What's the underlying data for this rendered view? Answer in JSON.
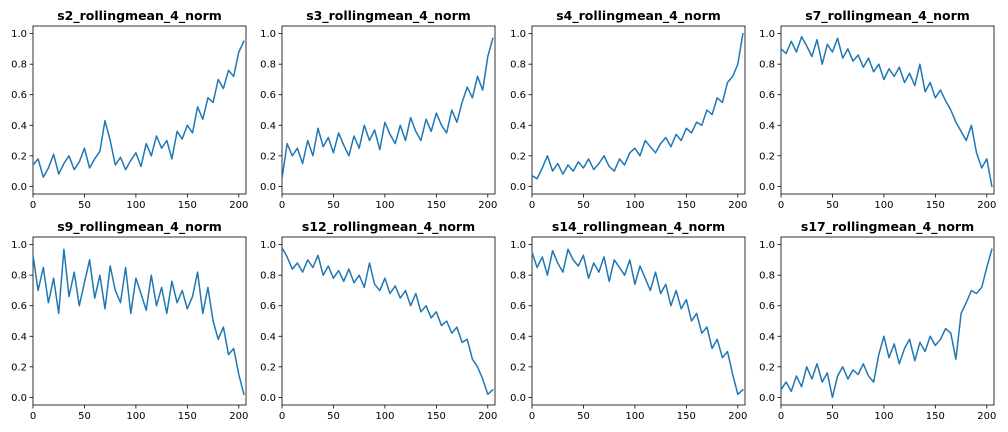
{
  "figure": {
    "background": "#ffffff",
    "line_color": "#1f77b4"
  },
  "chart_data": [
    {
      "type": "line",
      "title": "s2_rollingmean_4_norm",
      "xlim": [
        0,
        207
      ],
      "ylim": [
        -0.05,
        1.05
      ],
      "xticks": [
        0,
        50,
        100,
        150,
        200
      ],
      "yticks": [
        0.0,
        0.2,
        0.4,
        0.6,
        0.8,
        1.0
      ],
      "x": [
        0,
        5,
        10,
        15,
        20,
        25,
        30,
        35,
        40,
        45,
        50,
        55,
        60,
        65,
        70,
        75,
        80,
        85,
        90,
        95,
        100,
        105,
        110,
        115,
        120,
        125,
        130,
        135,
        140,
        145,
        150,
        155,
        160,
        165,
        170,
        175,
        180,
        185,
        190,
        195,
        200,
        205
      ],
      "values": [
        0.14,
        0.18,
        0.06,
        0.12,
        0.21,
        0.08,
        0.15,
        0.2,
        0.11,
        0.16,
        0.25,
        0.12,
        0.18,
        0.23,
        0.43,
        0.3,
        0.14,
        0.19,
        0.11,
        0.17,
        0.22,
        0.13,
        0.28,
        0.2,
        0.33,
        0.25,
        0.3,
        0.18,
        0.36,
        0.31,
        0.4,
        0.35,
        0.52,
        0.44,
        0.58,
        0.55,
        0.7,
        0.64,
        0.76,
        0.72,
        0.88,
        0.95
      ]
    },
    {
      "type": "line",
      "title": "s3_rollingmean_4_norm",
      "xlim": [
        0,
        207
      ],
      "ylim": [
        -0.05,
        1.05
      ],
      "xticks": [
        0,
        50,
        100,
        150,
        200
      ],
      "yticks": [
        0.0,
        0.2,
        0.4,
        0.6,
        0.8,
        1.0
      ],
      "x": [
        0,
        5,
        10,
        15,
        20,
        25,
        30,
        35,
        40,
        45,
        50,
        55,
        60,
        65,
        70,
        75,
        80,
        85,
        90,
        95,
        100,
        105,
        110,
        115,
        120,
        125,
        130,
        135,
        140,
        145,
        150,
        155,
        160,
        165,
        170,
        175,
        180,
        185,
        190,
        195,
        200,
        205
      ],
      "values": [
        0.05,
        0.28,
        0.2,
        0.25,
        0.15,
        0.3,
        0.2,
        0.38,
        0.26,
        0.32,
        0.22,
        0.35,
        0.27,
        0.2,
        0.33,
        0.25,
        0.4,
        0.3,
        0.37,
        0.24,
        0.42,
        0.34,
        0.28,
        0.4,
        0.3,
        0.45,
        0.36,
        0.3,
        0.44,
        0.36,
        0.48,
        0.4,
        0.35,
        0.5,
        0.42,
        0.55,
        0.65,
        0.58,
        0.72,
        0.63,
        0.85,
        0.97
      ]
    },
    {
      "type": "line",
      "title": "s4_rollingmean_4_norm",
      "xlim": [
        0,
        207
      ],
      "ylim": [
        -0.05,
        1.05
      ],
      "xticks": [
        0,
        50,
        100,
        150,
        200
      ],
      "yticks": [
        0.0,
        0.2,
        0.4,
        0.6,
        0.8,
        1.0
      ],
      "x": [
        0,
        5,
        10,
        15,
        20,
        25,
        30,
        35,
        40,
        45,
        50,
        55,
        60,
        65,
        70,
        75,
        80,
        85,
        90,
        95,
        100,
        105,
        110,
        115,
        120,
        125,
        130,
        135,
        140,
        145,
        150,
        155,
        160,
        165,
        170,
        175,
        180,
        185,
        190,
        195,
        200,
        205
      ],
      "values": [
        0.07,
        0.05,
        0.12,
        0.2,
        0.1,
        0.15,
        0.08,
        0.14,
        0.1,
        0.16,
        0.12,
        0.18,
        0.11,
        0.15,
        0.2,
        0.13,
        0.1,
        0.18,
        0.14,
        0.22,
        0.25,
        0.2,
        0.3,
        0.26,
        0.22,
        0.28,
        0.32,
        0.26,
        0.34,
        0.3,
        0.38,
        0.35,
        0.42,
        0.4,
        0.5,
        0.47,
        0.58,
        0.55,
        0.68,
        0.72,
        0.8,
        1.0
      ]
    },
    {
      "type": "line",
      "title": "s7_rollingmean_4_norm",
      "xlim": [
        0,
        207
      ],
      "ylim": [
        -0.05,
        1.05
      ],
      "xticks": [
        0,
        50,
        100,
        150,
        200
      ],
      "yticks": [
        0.0,
        0.2,
        0.4,
        0.6,
        0.8,
        1.0
      ],
      "x": [
        0,
        5,
        10,
        15,
        20,
        25,
        30,
        35,
        40,
        45,
        50,
        55,
        60,
        65,
        70,
        75,
        80,
        85,
        90,
        95,
        100,
        105,
        110,
        115,
        120,
        125,
        130,
        135,
        140,
        145,
        150,
        155,
        160,
        165,
        170,
        175,
        180,
        185,
        190,
        195,
        200,
        205
      ],
      "values": [
        0.9,
        0.87,
        0.95,
        0.88,
        0.98,
        0.92,
        0.85,
        0.96,
        0.8,
        0.93,
        0.88,
        0.97,
        0.84,
        0.9,
        0.82,
        0.86,
        0.78,
        0.84,
        0.75,
        0.8,
        0.7,
        0.77,
        0.72,
        0.78,
        0.68,
        0.74,
        0.66,
        0.8,
        0.62,
        0.68,
        0.58,
        0.63,
        0.56,
        0.5,
        0.42,
        0.36,
        0.3,
        0.4,
        0.22,
        0.12,
        0.18,
        0.0
      ]
    },
    {
      "type": "line",
      "title": "s9_rollingmean_4_norm",
      "xlim": [
        0,
        207
      ],
      "ylim": [
        -0.05,
        1.05
      ],
      "xticks": [
        0,
        50,
        100,
        150,
        200
      ],
      "yticks": [
        0.0,
        0.2,
        0.4,
        0.6,
        0.8,
        1.0
      ],
      "x": [
        0,
        5,
        10,
        15,
        20,
        25,
        30,
        35,
        40,
        45,
        50,
        55,
        60,
        65,
        70,
        75,
        80,
        85,
        90,
        95,
        100,
        105,
        110,
        115,
        120,
        125,
        130,
        135,
        140,
        145,
        150,
        155,
        160,
        165,
        170,
        175,
        180,
        185,
        190,
        195,
        200,
        205
      ],
      "values": [
        0.93,
        0.7,
        0.85,
        0.62,
        0.78,
        0.55,
        0.97,
        0.66,
        0.82,
        0.6,
        0.75,
        0.9,
        0.65,
        0.8,
        0.58,
        0.86,
        0.7,
        0.62,
        0.85,
        0.55,
        0.78,
        0.68,
        0.57,
        0.8,
        0.6,
        0.72,
        0.55,
        0.76,
        0.62,
        0.7,
        0.58,
        0.66,
        0.82,
        0.55,
        0.72,
        0.5,
        0.38,
        0.46,
        0.28,
        0.32,
        0.15,
        0.02
      ]
    },
    {
      "type": "line",
      "title": "s12_rollingmean_4_norm",
      "xlim": [
        0,
        207
      ],
      "ylim": [
        -0.05,
        1.05
      ],
      "xticks": [
        0,
        50,
        100,
        150,
        200
      ],
      "yticks": [
        0.0,
        0.2,
        0.4,
        0.6,
        0.8,
        1.0
      ],
      "x": [
        0,
        5,
        10,
        15,
        20,
        25,
        30,
        35,
        40,
        45,
        50,
        55,
        60,
        65,
        70,
        75,
        80,
        85,
        90,
        95,
        100,
        105,
        110,
        115,
        120,
        125,
        130,
        135,
        140,
        145,
        150,
        155,
        160,
        165,
        170,
        175,
        180,
        185,
        190,
        195,
        200,
        205
      ],
      "values": [
        0.98,
        0.92,
        0.84,
        0.88,
        0.82,
        0.9,
        0.85,
        0.93,
        0.8,
        0.86,
        0.78,
        0.83,
        0.76,
        0.84,
        0.75,
        0.8,
        0.72,
        0.88,
        0.74,
        0.7,
        0.78,
        0.68,
        0.73,
        0.65,
        0.7,
        0.6,
        0.68,
        0.56,
        0.6,
        0.52,
        0.56,
        0.47,
        0.5,
        0.42,
        0.46,
        0.36,
        0.38,
        0.25,
        0.2,
        0.12,
        0.02,
        0.05
      ]
    },
    {
      "type": "line",
      "title": "s14_rollingmean_4_norm",
      "xlim": [
        0,
        207
      ],
      "ylim": [
        -0.05,
        1.05
      ],
      "xticks": [
        0,
        50,
        100,
        150,
        200
      ],
      "yticks": [
        0.0,
        0.2,
        0.4,
        0.6,
        0.8,
        1.0
      ],
      "x": [
        0,
        5,
        10,
        15,
        20,
        25,
        30,
        35,
        40,
        45,
        50,
        55,
        60,
        65,
        70,
        75,
        80,
        85,
        90,
        95,
        100,
        105,
        110,
        115,
        120,
        125,
        130,
        135,
        140,
        145,
        150,
        155,
        160,
        165,
        170,
        175,
        180,
        185,
        190,
        195,
        200,
        205
      ],
      "values": [
        0.95,
        0.85,
        0.92,
        0.8,
        0.96,
        0.88,
        0.82,
        0.97,
        0.9,
        0.86,
        0.93,
        0.78,
        0.88,
        0.82,
        0.92,
        0.76,
        0.9,
        0.85,
        0.8,
        0.9,
        0.74,
        0.86,
        0.78,
        0.7,
        0.82,
        0.68,
        0.74,
        0.6,
        0.7,
        0.58,
        0.64,
        0.5,
        0.55,
        0.42,
        0.46,
        0.32,
        0.38,
        0.26,
        0.3,
        0.15,
        0.02,
        0.05
      ]
    },
    {
      "type": "line",
      "title": "s17_rollingmean_4_norm",
      "xlim": [
        0,
        207
      ],
      "ylim": [
        -0.05,
        1.05
      ],
      "xticks": [
        0,
        50,
        100,
        150,
        200
      ],
      "yticks": [
        0.0,
        0.2,
        0.4,
        0.6,
        0.8,
        1.0
      ],
      "x": [
        0,
        5,
        10,
        15,
        20,
        25,
        30,
        35,
        40,
        45,
        50,
        55,
        60,
        65,
        70,
        75,
        80,
        85,
        90,
        95,
        100,
        105,
        110,
        115,
        120,
        125,
        130,
        135,
        140,
        145,
        150,
        155,
        160,
        165,
        170,
        175,
        180,
        185,
        190,
        195,
        200,
        205
      ],
      "values": [
        0.05,
        0.1,
        0.04,
        0.14,
        0.07,
        0.2,
        0.12,
        0.22,
        0.1,
        0.16,
        0.0,
        0.14,
        0.2,
        0.12,
        0.18,
        0.15,
        0.22,
        0.14,
        0.1,
        0.28,
        0.4,
        0.26,
        0.35,
        0.22,
        0.32,
        0.38,
        0.24,
        0.36,
        0.3,
        0.4,
        0.34,
        0.38,
        0.45,
        0.42,
        0.25,
        0.55,
        0.62,
        0.7,
        0.68,
        0.72,
        0.85,
        0.97
      ]
    }
  ]
}
